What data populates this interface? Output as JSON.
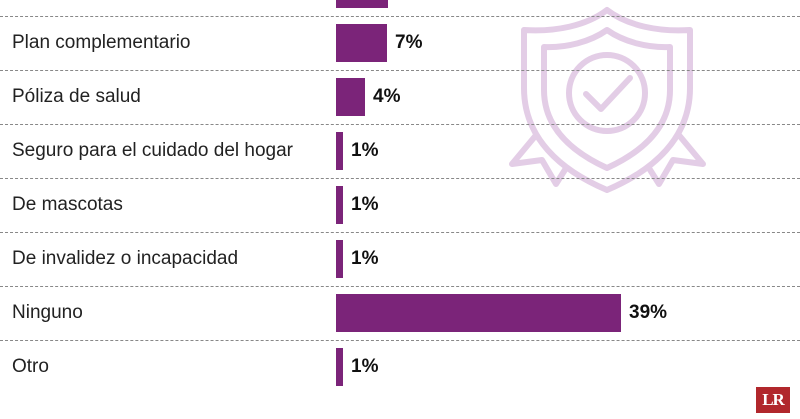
{
  "chart_data": {
    "type": "bar",
    "orientation": "horizontal",
    "categories": [
      "",
      "Plan complementario",
      "Póliza de salud",
      "Seguro para el cuidado del hogar",
      "De mascotas",
      "De invalidez o incapacidad",
      "Ninguno",
      "Otro"
    ],
    "values": [
      null,
      7,
      4,
      1,
      1,
      1,
      39,
      1
    ],
    "value_labels": [
      "",
      "7%",
      "4%",
      "1%",
      "1%",
      "1%",
      "39%",
      "1%"
    ],
    "unit": "%",
    "bar_color": "#7b2479",
    "grid": false
  },
  "decoration": {
    "icon": "shield-check-icon",
    "icon_color": "#e3cde6"
  },
  "logo": {
    "text": "LR",
    "color": "#b1272c"
  }
}
